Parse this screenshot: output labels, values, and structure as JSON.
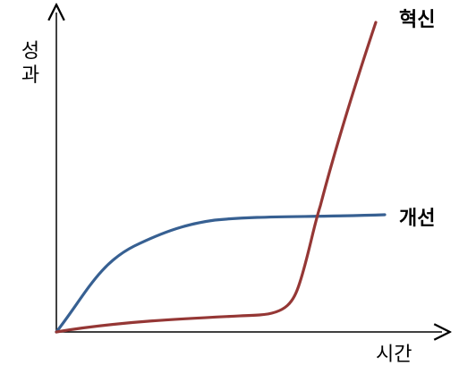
{
  "diagram": {
    "y_axis_label": "성과",
    "x_axis_label": "시간",
    "curves": [
      {
        "name": "혁신",
        "shape": "s-curve",
        "color": "#953735"
      },
      {
        "name": "개선",
        "shape": "saturating",
        "color": "#376092"
      }
    ],
    "axis_color": "#000000",
    "background": "#ffffff"
  }
}
